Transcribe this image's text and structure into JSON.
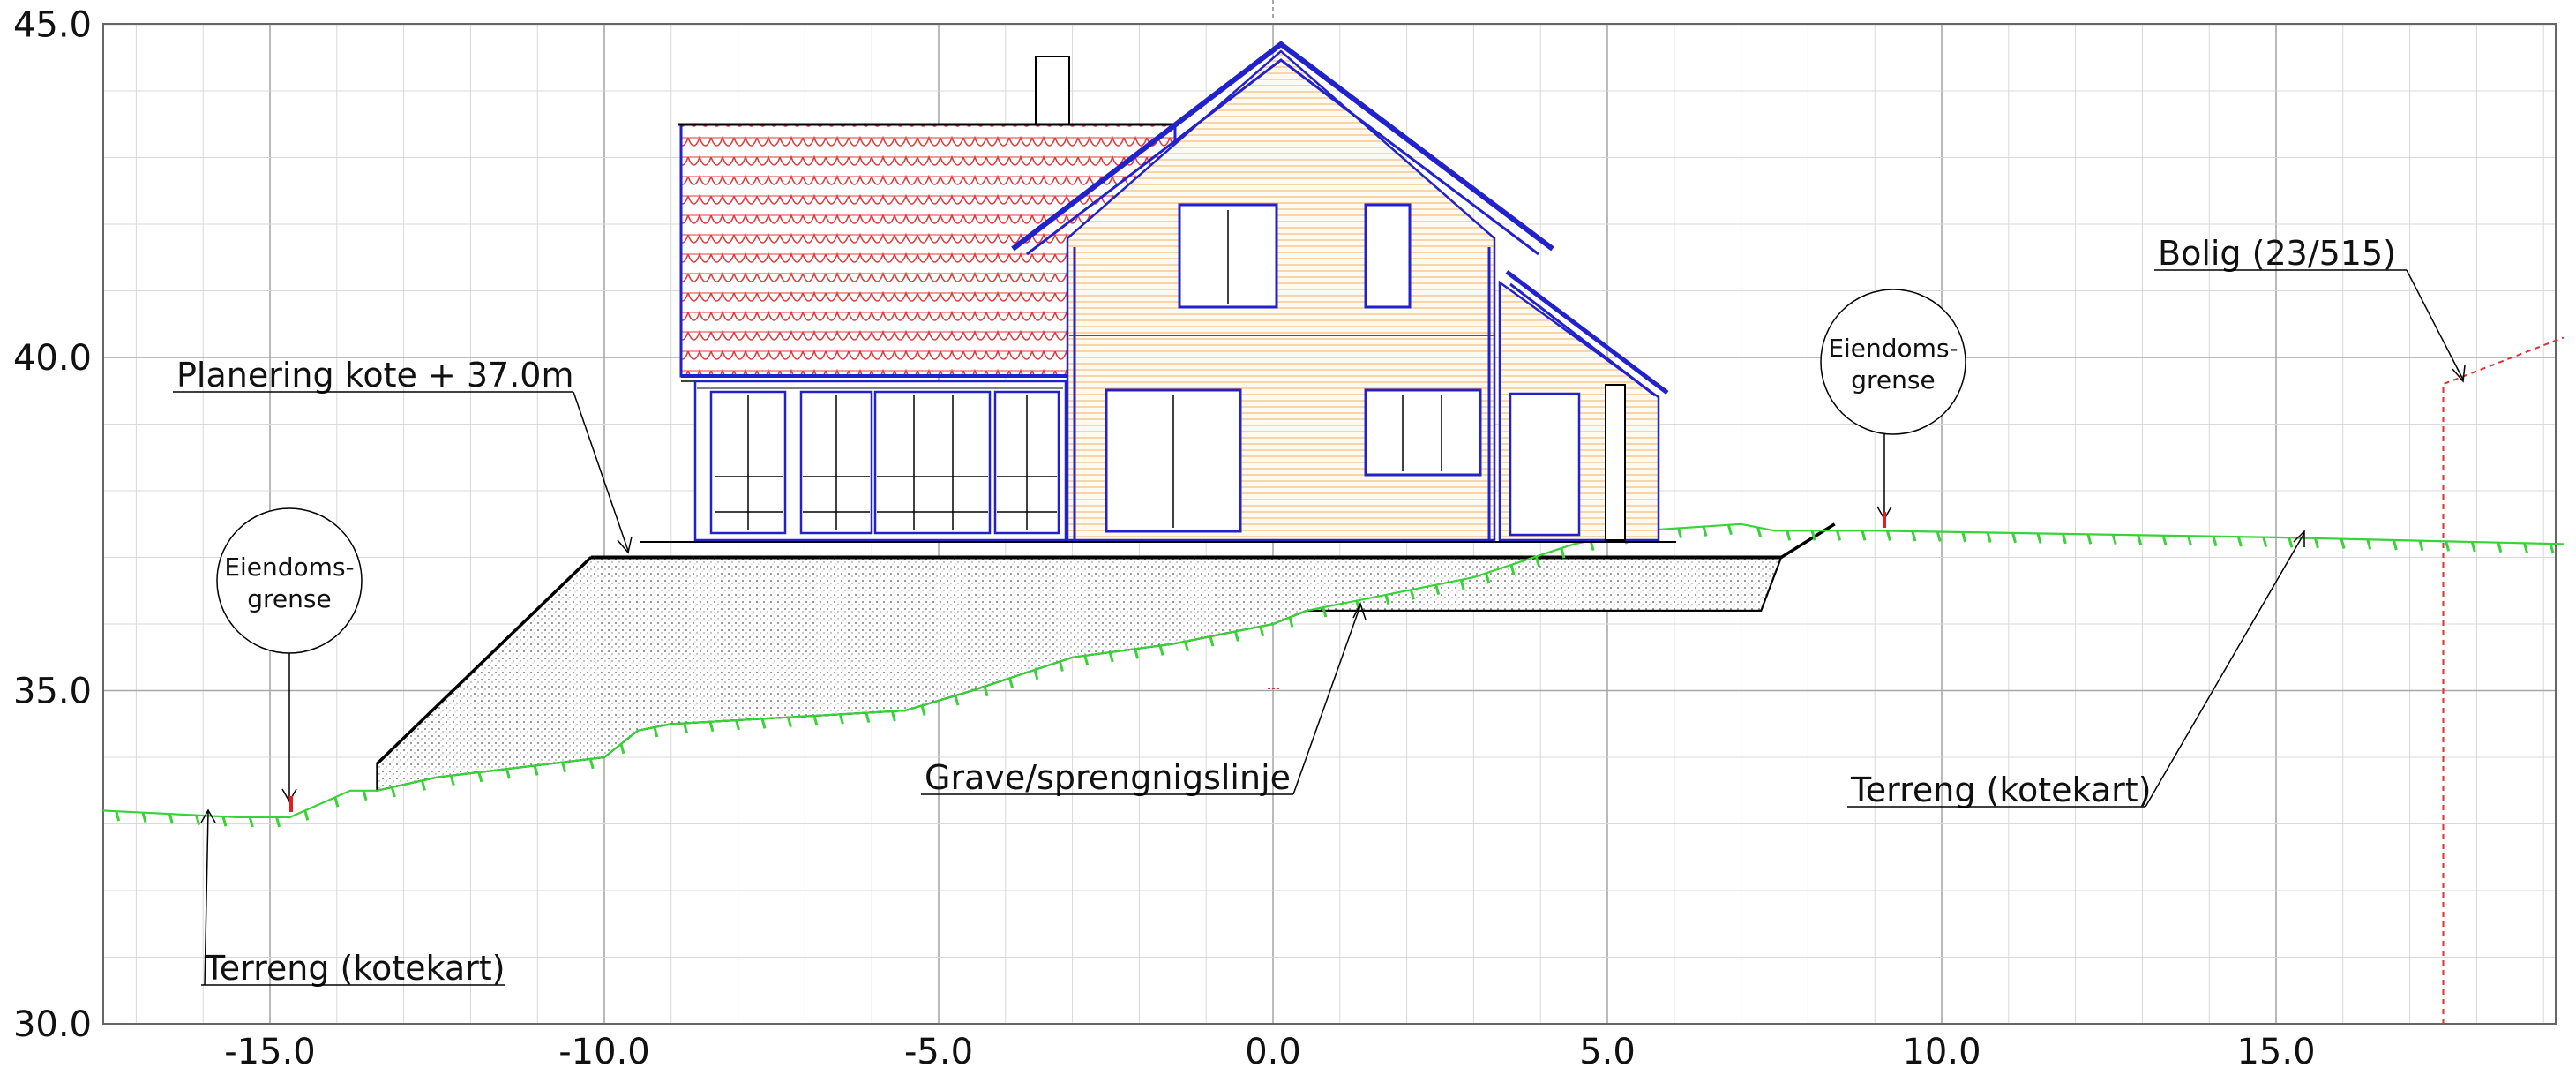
{
  "chart_data": {
    "type": "section-elevation",
    "x_ticks": [
      "-15.0",
      "-10.0",
      "-5.0",
      "0.0",
      "5.0",
      "10.0",
      "15.0"
    ],
    "x_tick_values": [
      -15,
      -10,
      -5,
      0,
      5,
      10,
      15
    ],
    "y_ticks": [
      "30.0",
      "35.0",
      "40.0",
      "45.0"
    ],
    "y_tick_values": [
      30,
      35,
      40,
      45
    ],
    "xlim": [
      -17.5,
      19.3
    ],
    "ylim": [
      30,
      45
    ],
    "grid": true,
    "terrain_kotekart": [
      [
        -17.5,
        33.2
      ],
      [
        -15.5,
        33.1
      ],
      [
        -14.7,
        33.1
      ],
      [
        -13.8,
        33.5
      ],
      [
        -13.4,
        33.5
      ],
      [
        -12.5,
        33.7
      ],
      [
        -10.0,
        34.0
      ],
      [
        -9.5,
        34.4
      ],
      [
        -9.0,
        34.5
      ],
      [
        -5.5,
        34.7
      ],
      [
        -4.5,
        35.0
      ],
      [
        -3.0,
        35.5
      ],
      [
        -1.5,
        35.7
      ],
      [
        0,
        36.0
      ],
      [
        0.5,
        36.2
      ],
      [
        1.5,
        36.4
      ],
      [
        3.0,
        36.7
      ],
      [
        4.5,
        37.2
      ],
      [
        5.5,
        37.4
      ],
      [
        7.0,
        37.5
      ],
      [
        7.5,
        37.4
      ],
      [
        9.0,
        37.4
      ],
      [
        12.0,
        37.35
      ],
      [
        15.0,
        37.3
      ],
      [
        19.3,
        37.2
      ]
    ],
    "excavation_line": [
      [
        -13.4,
        33.5
      ],
      [
        -12.5,
        33.7
      ],
      [
        -10.0,
        34.0
      ],
      [
        -9.5,
        34.4
      ],
      [
        -9.0,
        34.5
      ],
      [
        -5.5,
        34.7
      ],
      [
        -4.5,
        35.0
      ],
      [
        -3.0,
        35.5
      ],
      [
        -1.5,
        35.7
      ],
      [
        0,
        36.0
      ],
      [
        0.5,
        36.2
      ],
      [
        1.5,
        36.2
      ],
      [
        7.3,
        36.2
      ],
      [
        7.6,
        37.0
      ]
    ],
    "planering_level": 37.0,
    "fill_polygon": [
      [
        -13.4,
        33.5
      ],
      [
        -13.4,
        33.9
      ],
      [
        -10.2,
        37.0
      ],
      [
        7.6,
        37.0
      ],
      [
        7.3,
        36.2
      ],
      [
        1.5,
        36.2
      ],
      [
        0.5,
        36.2
      ],
      [
        0,
        36.0
      ],
      [
        -1.5,
        35.7
      ],
      [
        -3.0,
        35.5
      ],
      [
        -4.5,
        35.0
      ],
      [
        -5.5,
        34.7
      ],
      [
        -9.0,
        34.5
      ],
      [
        -9.5,
        34.4
      ],
      [
        -10.0,
        34.0
      ],
      [
        -12.5,
        33.7
      ]
    ],
    "neighbor_boundary": [
      [
        17.5,
        30.0
      ],
      [
        17.5,
        39.6
      ],
      [
        19.3,
        40.3
      ]
    ],
    "property_boundary_x": [
      -14.6,
      9.1
    ]
  },
  "annotations": {
    "planering": "Planering kote + 37.0m",
    "eiendom_left_1": "Eiendoms-",
    "eiendom_left_2": "grense",
    "eiendom_right_1": "Eiendoms-",
    "eiendom_right_2": "grense",
    "bolig": "Bolig (23/515)",
    "grave": "Grave/sprengnigslinje",
    "terreng_left": "Terreng (kotekart)",
    "terreng_right": "Terreng (kotekart)"
  }
}
